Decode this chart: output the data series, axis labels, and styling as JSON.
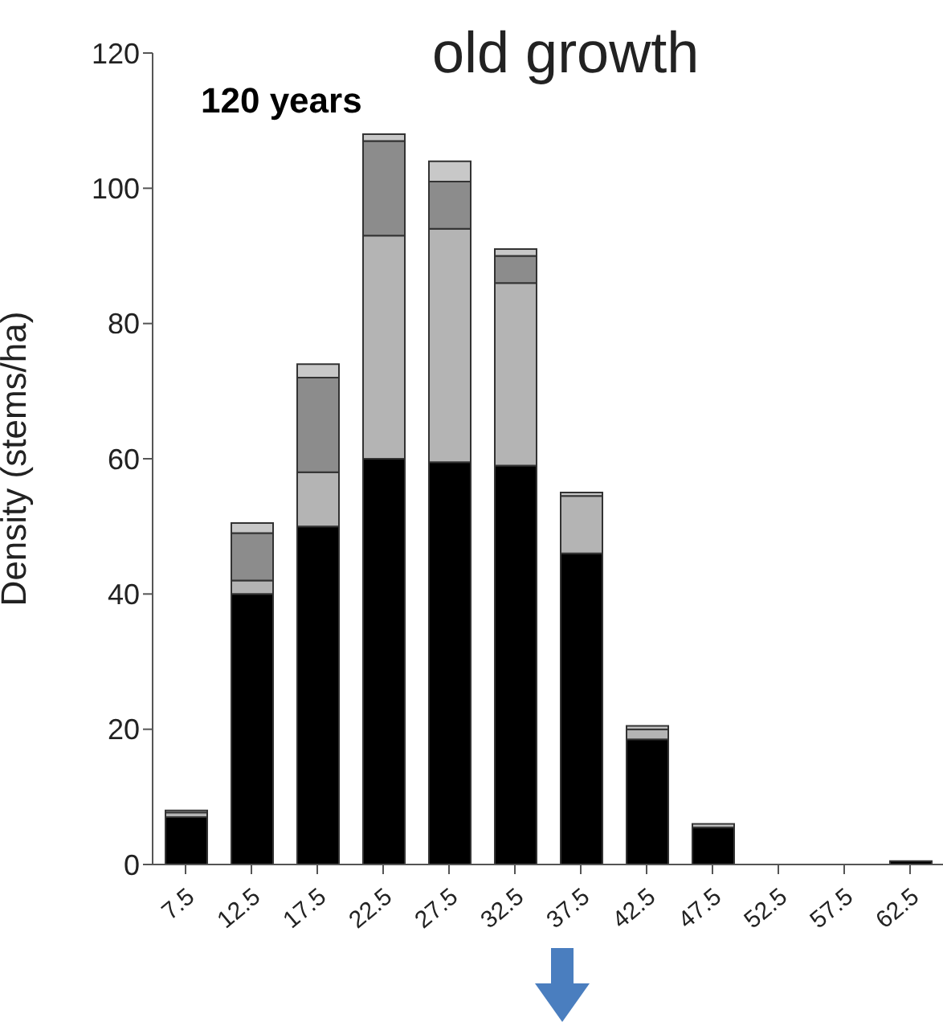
{
  "chart_data": {
    "type": "bar",
    "title": "old growth",
    "ylabel": "Density (stems/ha)",
    "annotations": [
      "120 years"
    ],
    "categories": [
      "7.5",
      "12.5",
      "17.5",
      "22.5",
      "27.5",
      "32.5",
      "37.5",
      "42.5",
      "47.5",
      "52.5",
      "57.5",
      "62.5"
    ],
    "stacked": true,
    "ylim": [
      0,
      120
    ],
    "yticks": [
      0,
      20,
      40,
      60,
      80,
      100,
      120
    ],
    "series": [
      {
        "color": "#000000",
        "values": [
          7,
          40,
          50,
          60,
          59.5,
          59,
          46,
          18.5,
          5.5,
          0,
          0,
          0.5
        ]
      },
      {
        "color": "#b4b4b4",
        "values": [
          0.7,
          2,
          8,
          33,
          34.5,
          27,
          8.5,
          1.5,
          0,
          0,
          0,
          0
        ]
      },
      {
        "color": "#8c8c8c",
        "values": [
          0,
          7,
          14,
          14,
          7,
          4,
          0,
          0,
          0,
          0,
          0,
          0
        ]
      },
      {
        "color": "#c8c8c8",
        "values": [
          0.3,
          1.5,
          2,
          1,
          3,
          1,
          0.5,
          0.5,
          0.5,
          0,
          0,
          0
        ]
      }
    ]
  }
}
